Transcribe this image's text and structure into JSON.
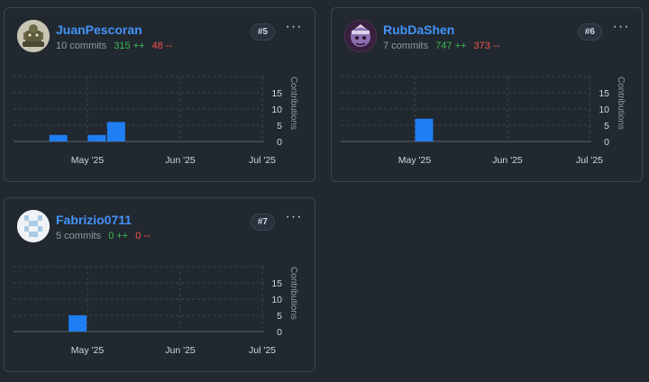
{
  "cards": [
    {
      "name": "JuanPescoran",
      "commits": "10 commits",
      "additions": "315 ++",
      "deletions": "48 --",
      "rank": "#5",
      "more_icon": "kebab-horizontal-icon",
      "avatar_icon": "avatar-figure-icon",
      "colors": {
        "avatar_bg": "#c9c5b4",
        "avatar_fg": "#5b5a3e"
      },
      "chart_data": {
        "type": "bar",
        "x_tick_labels": [
          "May '25",
          "Jun '25",
          "Jul '25"
        ],
        "y_tick_labels": [
          "15",
          "10",
          "5",
          "0"
        ],
        "ylabel": "Contributions",
        "ylim": [
          0,
          20
        ],
        "bar_color": "#1f7ef2",
        "bars": [
          {
            "date": "2025-04-14",
            "value": 2
          },
          {
            "date": "2025-04-28",
            "value": 2
          },
          {
            "date": "2025-05-05",
            "value": 6
          }
        ]
      }
    },
    {
      "name": "RubDaShen",
      "commits": "7 commits",
      "additions": "747 ++",
      "deletions": "373 --",
      "rank": "#6",
      "more_icon": "kebab-horizontal-icon",
      "avatar_icon": "avatar-character-icon",
      "colors": {
        "avatar_bg": "#3a1f3f",
        "avatar_fg": "#b59ad8"
      },
      "chart_data": {
        "type": "bar",
        "x_tick_labels": [
          "May '25",
          "Jun '25",
          "Jul '25"
        ],
        "y_tick_labels": [
          "15",
          "10",
          "5",
          "0"
        ],
        "ylabel": "Contributions",
        "ylim": [
          0,
          20
        ],
        "bar_color": "#1f7ef2",
        "bars": [
          {
            "date": "2025-04-28",
            "value": 7
          }
        ]
      }
    },
    {
      "name": "Fabrizio0711",
      "commits": "5 commits",
      "additions": "0 ++",
      "deletions": "0 --",
      "rank": "#7",
      "more_icon": "kebab-horizontal-icon",
      "avatar_icon": "identicon-icon",
      "colors": {
        "avatar_bg": "#f0f3f6",
        "avatar_fg": "#a9cbe6"
      },
      "chart_data": {
        "type": "bar",
        "x_tick_labels": [
          "May '25",
          "Jun '25",
          "Jul '25"
        ],
        "y_tick_labels": [
          "15",
          "10",
          "5",
          "0"
        ],
        "ylabel": "Contributions",
        "ylim": [
          0,
          20
        ],
        "bar_color": "#1f7ef2",
        "bars": [
          {
            "date": "2025-04-21",
            "value": 5
          }
        ]
      }
    }
  ]
}
